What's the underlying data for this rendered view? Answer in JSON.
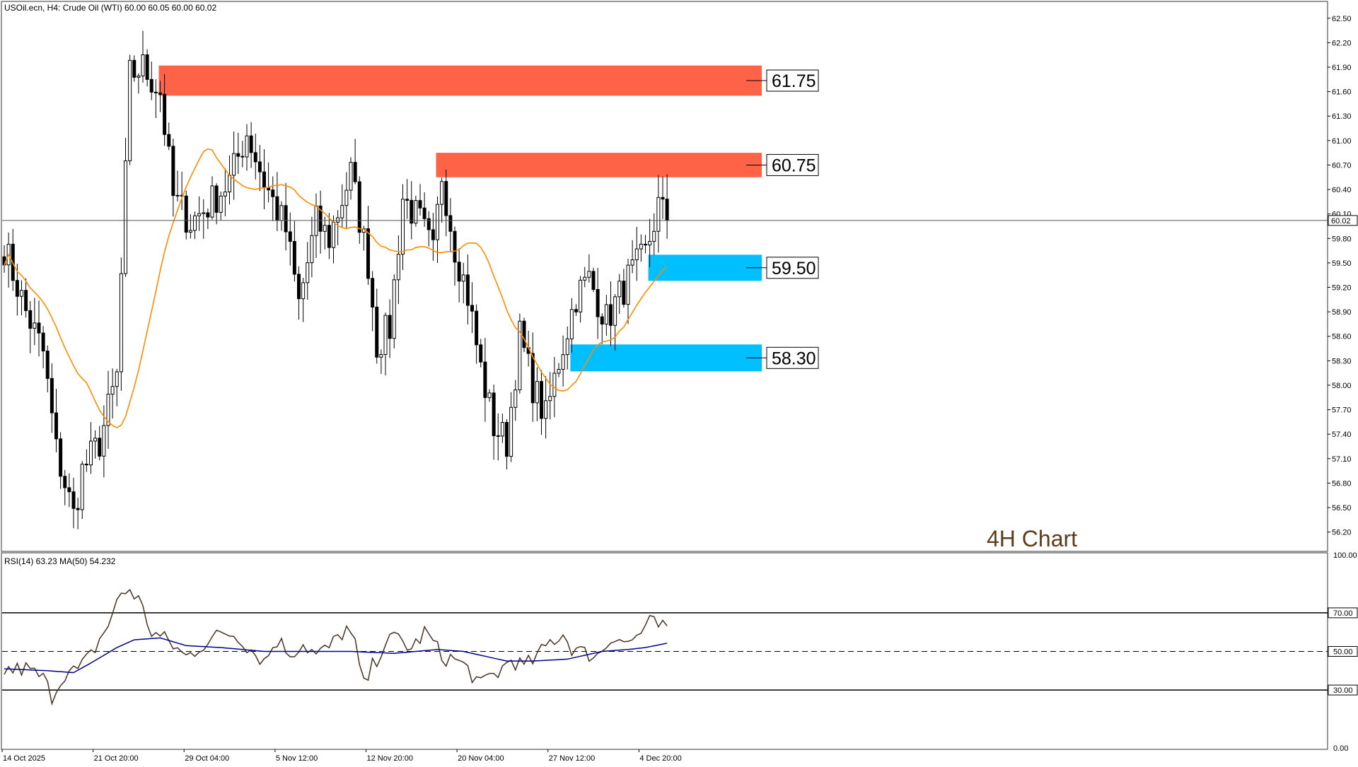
{
  "chart_data": [
    {
      "type": "candlestick",
      "symbol": "USOil.ecn",
      "timeframe": "H4",
      "instrument": "Crude Oil (WTI)",
      "ohlc": {
        "open": "60.00",
        "high": "60.05",
        "low": "60.00",
        "close": "60.02"
      },
      "header": "USOil.ecn, H4:  Crude Oil (WTI)  60.00 60.05 60.00 60.02",
      "label": "4H Chart",
      "ylim": [
        55.98,
        62.68
      ],
      "y_ticks": [
        "62.50",
        "62.20",
        "61.90",
        "61.60",
        "61.30",
        "61.00",
        "60.70",
        "60.40",
        "60.10",
        "59.80",
        "59.50",
        "59.20",
        "58.90",
        "58.60",
        "58.30",
        "58.00",
        "57.70",
        "57.40",
        "57.10",
        "56.80",
        "56.50",
        "56.20"
      ],
      "current_price": "60.02",
      "zones": [
        {
          "kind": "resistance",
          "label": "61.75",
          "low": 61.55,
          "high": 61.92,
          "start_index": 36,
          "color": "#ff6347"
        },
        {
          "kind": "resistance",
          "label": "60.75",
          "low": 60.55,
          "high": 60.85,
          "start_index": 100,
          "color": "#ff6347"
        },
        {
          "kind": "support",
          "label": "59.50",
          "low": 59.28,
          "high": 59.6,
          "start_index": 149,
          "color": "#00bfff"
        },
        {
          "kind": "support",
          "label": "58.30",
          "low": 58.17,
          "high": 58.5,
          "start_index": 131,
          "color": "#00bfff"
        }
      ],
      "ma_color": "#ff8c00",
      "close_anchors": [
        [
          0,
          59.7
        ],
        [
          5,
          58.9
        ],
        [
          9,
          58.4
        ],
        [
          12,
          57.2
        ],
        [
          16,
          56.4
        ],
        [
          18,
          56.95
        ],
        [
          22,
          57.3
        ],
        [
          26,
          58.1
        ],
        [
          29,
          61.8
        ],
        [
          32,
          61.9
        ],
        [
          36,
          61.6
        ],
        [
          39,
          60.3
        ],
        [
          43,
          60.0
        ],
        [
          47,
          60.2
        ],
        [
          52,
          60.5
        ],
        [
          56,
          61.1
        ],
        [
          60,
          60.5
        ],
        [
          65,
          59.9
        ],
        [
          68,
          59.0
        ],
        [
          72,
          60.0
        ],
        [
          75,
          59.8
        ],
        [
          80,
          60.6
        ],
        [
          84,
          59.5
        ],
        [
          86,
          58.5
        ],
        [
          89,
          58.7
        ],
        [
          92,
          60.3
        ],
        [
          96,
          60.0
        ],
        [
          99,
          59.6
        ],
        [
          101,
          60.6
        ],
        [
          104,
          59.7
        ],
        [
          107,
          59.1
        ],
        [
          110,
          58.2
        ],
        [
          113,
          57.5
        ],
        [
          116,
          57.3
        ],
        [
          119,
          58.6
        ],
        [
          122,
          58.0
        ],
        [
          125,
          57.6
        ],
        [
          128,
          58.3
        ],
        [
          132,
          59.1
        ],
        [
          135,
          59.3
        ],
        [
          139,
          58.8
        ],
        [
          144,
          59.3
        ],
        [
          148,
          59.6
        ],
        [
          151,
          60.2
        ],
        [
          153,
          60.02
        ]
      ],
      "candle_count": 154
    },
    {
      "type": "line",
      "indicator": "RSI(14) 63.23 MA(50) 54.232",
      "ylim": [
        0,
        100
      ],
      "y_ticks": [
        "100.00",
        "70.00",
        "50.00",
        "30.00",
        "0.00"
      ],
      "levels": [
        70,
        50,
        30
      ],
      "series": [
        {
          "name": "RSI(14)",
          "color": "#4a3323",
          "anchors": [
            [
              0,
              40
            ],
            [
              5,
              41
            ],
            [
              9,
              36
            ],
            [
              11,
              27
            ],
            [
              14,
              39
            ],
            [
              17,
              40
            ],
            [
              20,
              48
            ],
            [
              24,
              64
            ],
            [
              27,
              80
            ],
            [
              29,
              82
            ],
            [
              31,
              77
            ],
            [
              34,
              60
            ],
            [
              38,
              55
            ],
            [
              42,
              47
            ],
            [
              46,
              54
            ],
            [
              51,
              60
            ],
            [
              54,
              58
            ],
            [
              57,
              51
            ],
            [
              60,
              45
            ],
            [
              63,
              56
            ],
            [
              66,
              49
            ],
            [
              69,
              54
            ],
            [
              72,
              48
            ],
            [
              75,
              52
            ],
            [
              79,
              62
            ],
            [
              81,
              53
            ],
            [
              83,
              32
            ],
            [
              85,
              42
            ],
            [
              88,
              55
            ],
            [
              91,
              57
            ],
            [
              94,
              51
            ],
            [
              97,
              60
            ],
            [
              99,
              55
            ],
            [
              101,
              47
            ],
            [
              104,
              46
            ],
            [
              107,
              41
            ],
            [
              110,
              32
            ],
            [
              112,
              37
            ],
            [
              114,
              39
            ],
            [
              117,
              46
            ],
            [
              120,
              42
            ],
            [
              123,
              47
            ],
            [
              126,
              55
            ],
            [
              129,
              59
            ],
            [
              131,
              52
            ],
            [
              134,
              49
            ],
            [
              137,
              48
            ],
            [
              141,
              59
            ],
            [
              144,
              54
            ],
            [
              147,
              60
            ],
            [
              149,
              65
            ],
            [
              151,
              63
            ],
            [
              153,
              63.23
            ]
          ]
        },
        {
          "name": "MA(50)",
          "color": "#00008b",
          "anchors": [
            [
              0,
              41
            ],
            [
              10,
              40
            ],
            [
              16,
              39
            ],
            [
              20,
              44
            ],
            [
              26,
              52
            ],
            [
              30,
              56
            ],
            [
              36,
              57
            ],
            [
              42,
              53
            ],
            [
              50,
              52
            ],
            [
              60,
              50
            ],
            [
              70,
              50
            ],
            [
              80,
              50
            ],
            [
              90,
              49
            ],
            [
              100,
              51
            ],
            [
              106,
              50
            ],
            [
              112,
              47
            ],
            [
              116,
              45
            ],
            [
              122,
              45
            ],
            [
              130,
              46
            ],
            [
              138,
              50
            ],
            [
              144,
              51
            ],
            [
              148,
              52
            ],
            [
              153,
              54.232
            ]
          ]
        }
      ]
    }
  ],
  "x_labels": [
    "14 Oct 2025",
    "21 Oct 20:00",
    "29 Oct 04:00",
    "5 Nov 12:00",
    "12 Nov 20:00",
    "20 Nov 04:00",
    "27 Nov 12:00",
    "4 Dec 20:00"
  ],
  "rsi_current": "63.23"
}
